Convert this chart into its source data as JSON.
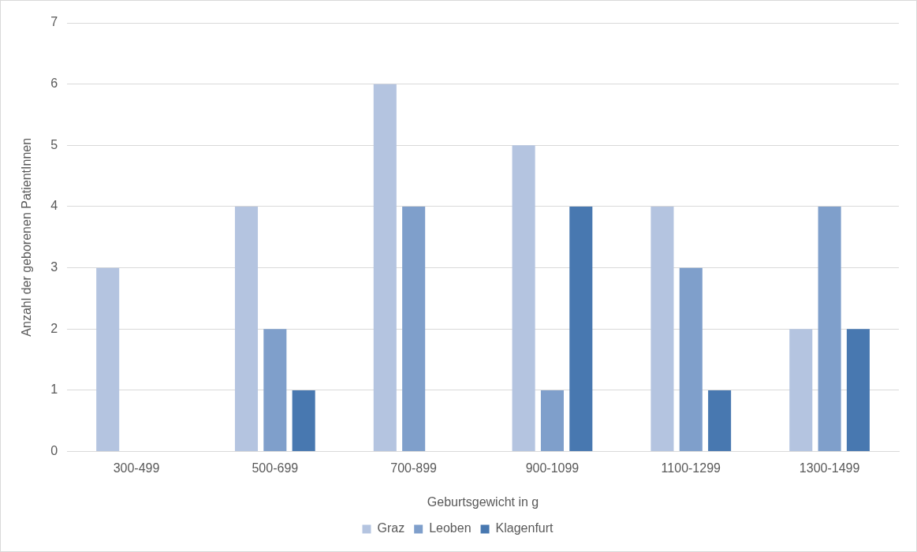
{
  "chart_data": {
    "type": "bar",
    "xlabel": "Geburtsgewicht in g",
    "ylabel": "Anzahl der geborenen PatientInnen",
    "categories": [
      "300-499",
      "500-699",
      "700-899",
      "900-1099",
      "1100-1299",
      "1300-1499"
    ],
    "series": [
      {
        "name": "Graz",
        "color": "#b4c4e0",
        "values": [
          3,
          4,
          6,
          5,
          4,
          2
        ]
      },
      {
        "name": "Leoben",
        "color": "#7f9fcb",
        "values": [
          0,
          2,
          4,
          1,
          3,
          4
        ]
      },
      {
        "name": "Klagenfurt",
        "color": "#4878b0",
        "values": [
          0,
          1,
          0,
          4,
          1,
          2
        ]
      }
    ],
    "ylim": [
      0,
      7
    ],
    "yticks": [
      0,
      1,
      2,
      3,
      4,
      5,
      6,
      7
    ],
    "grid": "y",
    "legend": "bottom"
  }
}
